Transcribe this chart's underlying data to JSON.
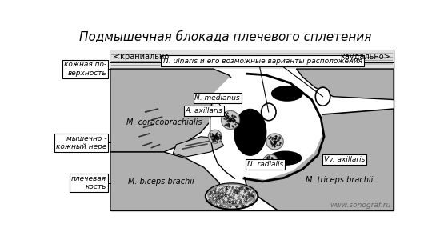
{
  "title": "Подмышечная блокада плечевого сплетения",
  "title_fontsize": 11,
  "bg_color": "#ffffff",
  "fig_width": 5.5,
  "fig_height": 3.0,
  "dpi": 100,
  "label_kranially": "<краниально",
  "label_kaudally": "каудально>",
  "label_skin": "кожная по-\nверхность",
  "label_muskul": "мышечно -\nкожный нере",
  "label_bone": "плечевая\nкость",
  "label_coracobrachialis": "M. coracobrachialis",
  "label_biceps": "M. biceps brachii",
  "label_triceps": "M. triceps brachii",
  "label_n_medianus": "N. medianus",
  "label_a_axillaris": "A. axillaris",
  "label_n_radialis": "N. radialis",
  "label_vv_axillaris": "Vv. axillaris",
  "label_n_ulnaris": "N. ulnaris и его возможные варианты расположения",
  "label_www": "www.sonograf.ru",
  "muscle_gray": "#b0b0b0",
  "dark_gray": "#888888",
  "light_gray": "#d0d0d0"
}
